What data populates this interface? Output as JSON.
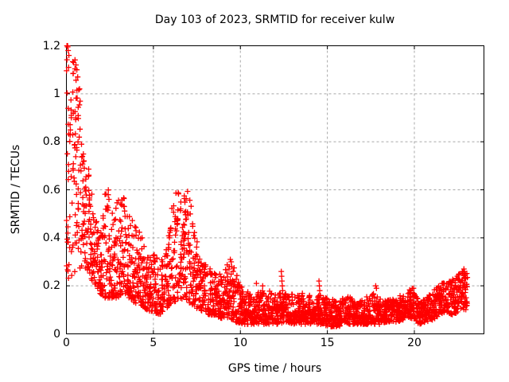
{
  "chart_data": {
    "type": "scatter",
    "title": "Day 103 of 2023, SRMTID for receiver kulw",
    "xlabel": "GPS time / hours",
    "ylabel": "SRMTID / TECUs",
    "xlim": [
      0,
      24
    ],
    "ylim": [
      0,
      1.2
    ],
    "xticks": [
      0,
      5,
      10,
      15,
      20
    ],
    "yticks": [
      0,
      0.2,
      0.4,
      0.6,
      0.8,
      1,
      1.2
    ],
    "grid": true,
    "legend": "none",
    "marker": "plus",
    "marker_size_px": 7,
    "colors": {
      "marker": "#ff0000",
      "grid": "#a8a8a8",
      "border": "#000000",
      "text": "#000000",
      "background": "#ffffff"
    },
    "sample_rate_per_hour": 120,
    "time_span_hours": [
      0,
      23.05
    ],
    "seed": 103,
    "envelope_note": "Dense time series of ~2800 points; each row is [hour, min_value, max_value, skew] of the scatter band read from the plot; skew>1 means points concentrate toward the band bottom.",
    "envelope": [
      [
        0.0,
        0.19,
        1.28,
        1.0
      ],
      [
        0.25,
        0.22,
        1.18,
        1.0
      ],
      [
        0.55,
        0.25,
        1.15,
        0.9
      ],
      [
        0.85,
        0.28,
        0.98,
        1.0
      ],
      [
        1.05,
        0.28,
        0.82,
        1.1
      ],
      [
        1.3,
        0.25,
        0.68,
        1.2
      ],
      [
        1.6,
        0.2,
        0.5,
        1.3
      ],
      [
        2.0,
        0.16,
        0.42,
        1.3
      ],
      [
        2.2,
        0.15,
        0.58,
        1.6
      ],
      [
        2.45,
        0.15,
        0.62,
        1.6
      ],
      [
        2.7,
        0.15,
        0.48,
        1.5
      ],
      [
        2.95,
        0.15,
        0.56,
        1.5
      ],
      [
        3.3,
        0.17,
        0.57,
        1.4
      ],
      [
        3.6,
        0.15,
        0.52,
        1.5
      ],
      [
        3.9,
        0.13,
        0.46,
        1.5
      ],
      [
        4.25,
        0.12,
        0.44,
        1.6
      ],
      [
        4.6,
        0.1,
        0.32,
        1.5
      ],
      [
        5.0,
        0.09,
        0.34,
        1.5
      ],
      [
        5.4,
        0.08,
        0.3,
        1.5
      ],
      [
        5.8,
        0.11,
        0.36,
        1.4
      ],
      [
        6.1,
        0.13,
        0.55,
        1.5
      ],
      [
        6.45,
        0.14,
        0.63,
        1.4
      ],
      [
        6.8,
        0.14,
        0.58,
        1.4
      ],
      [
        7.05,
        0.13,
        0.62,
        1.5
      ],
      [
        7.35,
        0.11,
        0.45,
        1.5
      ],
      [
        7.7,
        0.1,
        0.32,
        1.4
      ],
      [
        8.1,
        0.08,
        0.28,
        1.4
      ],
      [
        8.6,
        0.07,
        0.26,
        1.5
      ],
      [
        9.0,
        0.06,
        0.24,
        1.4
      ],
      [
        9.35,
        0.07,
        0.31,
        1.4
      ],
      [
        9.7,
        0.05,
        0.27,
        1.5
      ],
      [
        10.1,
        0.04,
        0.19,
        1.4
      ],
      [
        10.6,
        0.04,
        0.17,
        1.4
      ],
      [
        11.1,
        0.04,
        0.18,
        1.4
      ],
      [
        11.6,
        0.04,
        0.18,
        1.4
      ],
      [
        12.1,
        0.04,
        0.17,
        1.4
      ],
      [
        12.6,
        0.05,
        0.18,
        1.4
      ],
      [
        13.1,
        0.04,
        0.16,
        1.4
      ],
      [
        13.6,
        0.04,
        0.17,
        1.4
      ],
      [
        14.1,
        0.04,
        0.16,
        1.4
      ],
      [
        14.6,
        0.04,
        0.16,
        1.4
      ],
      [
        15.1,
        0.03,
        0.15,
        1.3
      ],
      [
        15.6,
        0.03,
        0.14,
        1.3
      ],
      [
        16.1,
        0.04,
        0.16,
        1.3
      ],
      [
        16.6,
        0.04,
        0.14,
        1.3
      ],
      [
        17.1,
        0.04,
        0.15,
        1.3
      ],
      [
        17.6,
        0.04,
        0.17,
        1.3
      ],
      [
        18.0,
        0.04,
        0.15,
        1.3
      ],
      [
        18.5,
        0.05,
        0.14,
        1.2
      ],
      [
        19.0,
        0.05,
        0.15,
        1.2
      ],
      [
        19.5,
        0.06,
        0.18,
        1.2
      ],
      [
        19.9,
        0.06,
        0.19,
        1.2
      ],
      [
        20.3,
        0.04,
        0.13,
        1.2
      ],
      [
        20.7,
        0.05,
        0.15,
        1.2
      ],
      [
        21.1,
        0.06,
        0.18,
        1.2
      ],
      [
        21.5,
        0.08,
        0.21,
        1.2
      ],
      [
        21.9,
        0.08,
        0.22,
        1.1
      ],
      [
        22.3,
        0.08,
        0.23,
        1.1
      ],
      [
        22.7,
        0.1,
        0.26,
        1.0
      ],
      [
        23.05,
        0.1,
        0.27,
        1.0
      ]
    ],
    "outliers": [
      [
        0.03,
        1.2
      ],
      [
        0.07,
        1.21
      ],
      [
        0.1,
        1.18
      ],
      [
        0.14,
        1.16
      ],
      [
        0.55,
        1.12
      ],
      [
        0.6,
        1.1
      ],
      [
        0.65,
        1.07
      ],
      [
        5.92,
        0.4
      ],
      [
        9.42,
        0.31
      ],
      [
        9.47,
        0.3
      ],
      [
        10.92,
        0.21
      ],
      [
        11.28,
        0.2
      ],
      [
        12.35,
        0.26
      ],
      [
        12.37,
        0.24
      ],
      [
        12.39,
        0.22
      ],
      [
        12.41,
        0.2
      ],
      [
        12.43,
        0.18
      ],
      [
        14.52,
        0.22
      ],
      [
        14.54,
        0.2
      ],
      [
        14.56,
        0.18
      ],
      [
        14.58,
        0.16
      ],
      [
        17.78,
        0.2
      ],
      [
        17.82,
        0.19
      ],
      [
        19.95,
        0.19
      ],
      [
        22.85,
        0.27
      ],
      [
        22.88,
        0.26
      ],
      [
        22.92,
        0.25
      ],
      [
        22.95,
        0.23
      ]
    ]
  }
}
